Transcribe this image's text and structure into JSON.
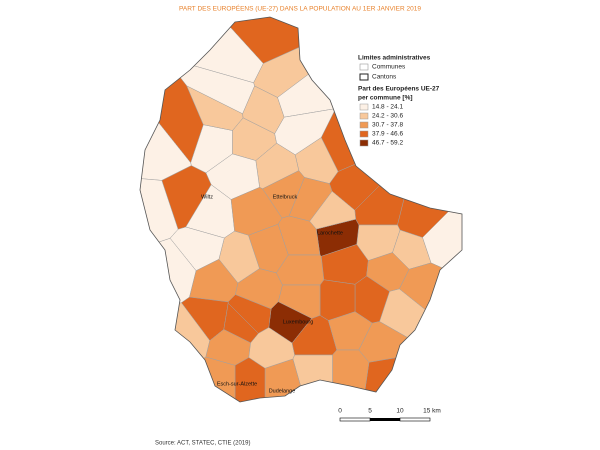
{
  "title": "PART DES EUROPÉENS (UE-27) DANS LA POPULATION AU 1ER JANVIER 2019",
  "legend": {
    "admin_title": "Limites administratives",
    "boundaries": [
      "Communes",
      "Cantons"
    ],
    "share_title": "Part des Européens UE-27",
    "share_unit": "per commune [%]",
    "classes": [
      {
        "label": "14.8 - 24.1",
        "color": "#fdf1e6"
      },
      {
        "label": "24.2 - 30.6",
        "color": "#f8c89b"
      },
      {
        "label": "30.7 - 37.8",
        "color": "#f09a55"
      },
      {
        "label": "37.9 - 46.6",
        "color": "#e0661f"
      },
      {
        "label": "46.7 - 59.2",
        "color": "#8c2d04"
      }
    ]
  },
  "places": [
    "Wiltz",
    "Ettelbruck",
    "Larochette",
    "Luxembourg",
    "Esch-sur-Alzette",
    "Dudelange"
  ],
  "scale_bar": [
    "0",
    "5",
    "10",
    "15 km"
  ],
  "source": "Source: ACT, STATEC, CTIE (2019)"
}
